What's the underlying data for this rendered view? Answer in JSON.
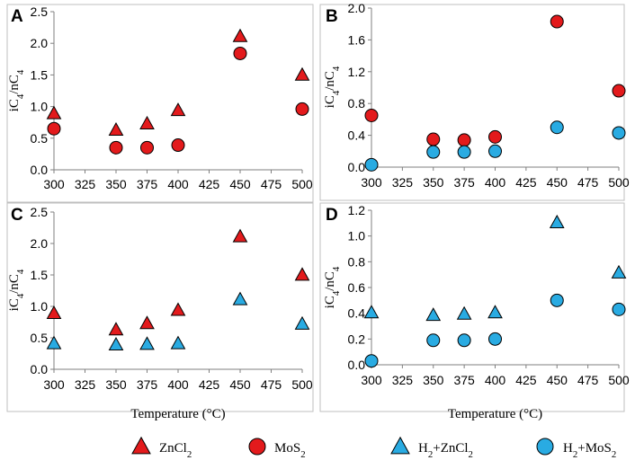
{
  "chart_data": [
    {
      "panel": "A",
      "type": "scatter",
      "ylabel": "iC4/nC4",
      "xlabel": "",
      "xlim": [
        300,
        500
      ],
      "ylim": [
        0,
        2.5
      ],
      "xticks": [
        300,
        325,
        350,
        375,
        400,
        425,
        450,
        475,
        500
      ],
      "xtick_labels": [
        "300",
        "325",
        "350",
        "375",
        "400",
        "425",
        "450",
        "475",
        "500"
      ],
      "yticks": [
        0,
        0.5,
        1,
        1.5,
        2,
        2.5
      ],
      "ytick_labels": [
        "0.0",
        "0.5",
        "1.0",
        "1.5",
        "2.0",
        "2.5"
      ],
      "series": [
        {
          "name": "ZnCl2",
          "marker": "triangle",
          "color": "#e31a1c",
          "x": [
            300,
            350,
            375,
            400,
            450,
            500
          ],
          "y": [
            0.88,
            0.62,
            0.72,
            0.93,
            2.1,
            1.49
          ]
        },
        {
          "name": "MoS2",
          "marker": "circle",
          "color": "#e31a1c",
          "x": [
            300,
            350,
            375,
            400,
            450,
            500
          ],
          "y": [
            0.65,
            0.35,
            0.35,
            0.39,
            1.84,
            0.96
          ]
        }
      ]
    },
    {
      "panel": "B",
      "type": "scatter",
      "ylabel": "iC4/nC4",
      "xlabel": "",
      "xlim": [
        300,
        500
      ],
      "ylim": [
        0,
        2.0
      ],
      "xticks": [
        300,
        325,
        350,
        375,
        400,
        425,
        450,
        475,
        500
      ],
      "xtick_labels": [
        "300",
        "325",
        "350",
        "375",
        "400",
        "425",
        "450",
        "475",
        "500"
      ],
      "yticks": [
        0,
        0.4,
        0.8,
        1.2,
        1.6,
        2.0
      ],
      "ytick_labels": [
        "0.0",
        "0.4",
        "0.8",
        "1.2",
        "1.6",
        "2.0"
      ],
      "series": [
        {
          "name": "MoS2",
          "marker": "circle",
          "color": "#e31a1c",
          "x": [
            300,
            350,
            375,
            400,
            450,
            500
          ],
          "y": [
            0.65,
            0.35,
            0.34,
            0.38,
            1.83,
            0.96
          ]
        },
        {
          "name": "H2+MoS2",
          "marker": "circle",
          "color": "#29abe2",
          "x": [
            300,
            350,
            375,
            400,
            450,
            500
          ],
          "y": [
            0.03,
            0.19,
            0.19,
            0.2,
            0.5,
            0.43
          ]
        }
      ]
    },
    {
      "panel": "C",
      "type": "scatter",
      "ylabel": "iC4/nC4",
      "xlabel": "Temperature (°C)",
      "xlim": [
        300,
        500
      ],
      "ylim": [
        0,
        2.5
      ],
      "xticks": [
        300,
        325,
        350,
        375,
        400,
        425,
        450,
        475,
        500
      ],
      "xtick_labels": [
        "300",
        "325",
        "350",
        "375",
        "400",
        "425",
        "450",
        "475",
        "500"
      ],
      "yticks": [
        0,
        0.5,
        1,
        1.5,
        2,
        2.5
      ],
      "ytick_labels": [
        "0.0",
        "0.5",
        "1.0",
        "1.5",
        "2.0",
        "2.5"
      ],
      "series": [
        {
          "name": "ZnCl2",
          "marker": "triangle",
          "color": "#e31a1c",
          "x": [
            300,
            350,
            375,
            400,
            450,
            500
          ],
          "y": [
            0.88,
            0.62,
            0.72,
            0.93,
            2.1,
            1.49
          ]
        },
        {
          "name": "H2+ZnCl2",
          "marker": "triangle",
          "color": "#29abe2",
          "x": [
            300,
            350,
            375,
            400,
            450,
            500
          ],
          "y": [
            0.4,
            0.38,
            0.39,
            0.4,
            1.1,
            0.71
          ]
        }
      ]
    },
    {
      "panel": "D",
      "type": "scatter",
      "ylabel": "iC4/nC4",
      "xlabel": "Temperature (°C)",
      "xlim": [
        300,
        500
      ],
      "ylim": [
        0,
        1.2
      ],
      "xticks": [
        300,
        325,
        350,
        375,
        400,
        425,
        450,
        475,
        500
      ],
      "xtick_labels": [
        "300",
        "325",
        "350",
        "375",
        "400",
        "425",
        "450",
        "475",
        "500"
      ],
      "yticks": [
        0,
        0.2,
        0.4,
        0.6,
        0.8,
        1.0,
        1.2
      ],
      "ytick_labels": [
        "0.0",
        "0.2",
        "0.4",
        "0.6",
        "0.8",
        "1.0",
        "1.2"
      ],
      "series": [
        {
          "name": "H2+ZnCl2",
          "marker": "triangle",
          "color": "#29abe2",
          "x": [
            300,
            350,
            375,
            400,
            450,
            500
          ],
          "y": [
            0.4,
            0.38,
            0.39,
            0.4,
            1.1,
            0.71
          ]
        },
        {
          "name": "H2+MoS2",
          "marker": "circle",
          "color": "#29abe2",
          "x": [
            300,
            350,
            375,
            400,
            450,
            500
          ],
          "y": [
            0.03,
            0.19,
            0.19,
            0.2,
            0.5,
            0.43
          ]
        }
      ]
    }
  ],
  "legend": [
    {
      "label": "ZnCl2",
      "marker": "triangle",
      "color": "#e31a1c"
    },
    {
      "label": "MoS2",
      "marker": "circle",
      "color": "#e31a1c"
    },
    {
      "label": "H2+ZnCl2",
      "marker": "triangle",
      "color": "#29abe2"
    },
    {
      "label": "H2+MoS2",
      "marker": "circle",
      "color": "#29abe2"
    }
  ]
}
